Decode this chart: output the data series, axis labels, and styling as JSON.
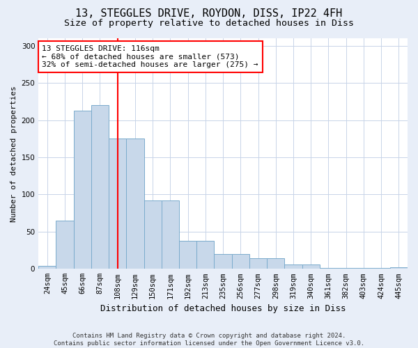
{
  "title1": "13, STEGGLES DRIVE, ROYDON, DISS, IP22 4FH",
  "title2": "Size of property relative to detached houses in Diss",
  "xlabel": "Distribution of detached houses by size in Diss",
  "ylabel": "Number of detached properties",
  "footnote": "Contains HM Land Registry data © Crown copyright and database right 2024.\nContains public sector information licensed under the Open Government Licence v3.0.",
  "bar_labels": [
    "24sqm",
    "45sqm",
    "66sqm",
    "87sqm",
    "108sqm",
    "129sqm",
    "150sqm",
    "171sqm",
    "192sqm",
    "213sqm",
    "235sqm",
    "256sqm",
    "277sqm",
    "298sqm",
    "319sqm",
    "340sqm",
    "361sqm",
    "382sqm",
    "403sqm",
    "424sqm",
    "445sqm"
  ],
  "bar_values": [
    4,
    65,
    213,
    220,
    175,
    175,
    92,
    92,
    38,
    38,
    20,
    20,
    14,
    14,
    6,
    6,
    1,
    1,
    1,
    1,
    2
  ],
  "bar_color": "#c8d8ea",
  "bar_edge_color": "#7aabcc",
  "vline_color": "red",
  "vline_x": 4.5,
  "annotation_text": "13 STEGGLES DRIVE: 116sqm\n← 68% of detached houses are smaller (573)\n32% of semi-detached houses are larger (275) →",
  "annotation_box_color": "white",
  "annotation_box_edge_color": "red",
  "ylim": [
    0,
    310
  ],
  "yticks": [
    0,
    50,
    100,
    150,
    200,
    250,
    300
  ],
  "background_color": "#e8eef8",
  "plot_bg_color": "#ffffff",
  "title1_fontsize": 11,
  "title2_fontsize": 9.5,
  "xlabel_fontsize": 9,
  "ylabel_fontsize": 8,
  "tick_fontsize": 7.5,
  "annotation_fontsize": 8,
  "footnote_fontsize": 6.5
}
